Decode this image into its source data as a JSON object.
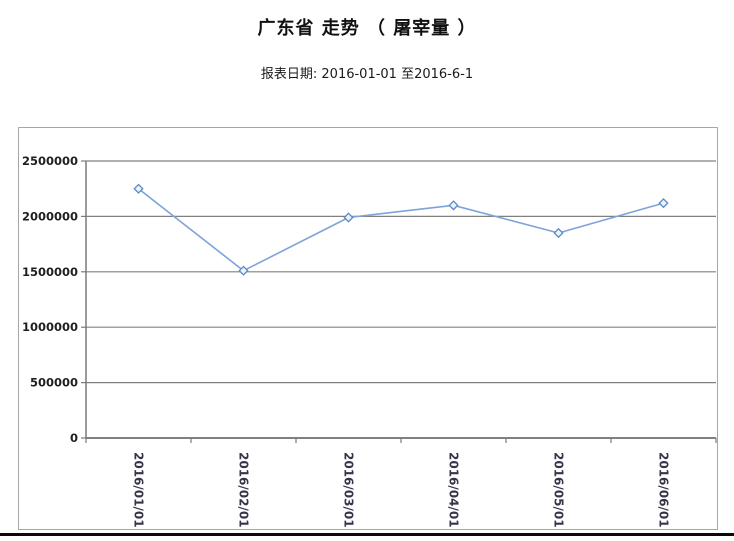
{
  "header": {
    "title": "广东省 走势 （ 屠宰量 ）",
    "subtitle": "报表日期: 2016-01-01 至2016-6-1"
  },
  "chart_data": {
    "type": "line",
    "title": "广东省 走势 （ 屠宰量 ）",
    "categories": [
      "2016/01/01",
      "2016/02/01",
      "2016/03/01",
      "2016/04/01",
      "2016/05/01",
      "2016/06/01"
    ],
    "series": [
      {
        "name": "屠宰量",
        "values": [
          2250000,
          1510000,
          1990000,
          2100000,
          1850000,
          2120000
        ]
      }
    ],
    "ylim": [
      0,
      2500000
    ],
    "ytick_interval": 500000,
    "ytick_labels": [
      "2500000",
      "2000000",
      "1500000",
      "1000000",
      "500000",
      "0"
    ],
    "xlabel": "",
    "ylabel": "",
    "grid": true,
    "legend_position": "none",
    "marker": "diamond",
    "x_labels_rotated_deg": 90,
    "colors": {
      "line": "#7DA3D8",
      "marker_stroke": "#5B8AC5",
      "marker_fill": "#EDF3FA",
      "gridline": "#808080",
      "axis": "#7A7A7A",
      "y_tick_label": "#1F1F1F",
      "x_tick_label": "#35354A",
      "chart_border": "#A6A6A6"
    }
  }
}
